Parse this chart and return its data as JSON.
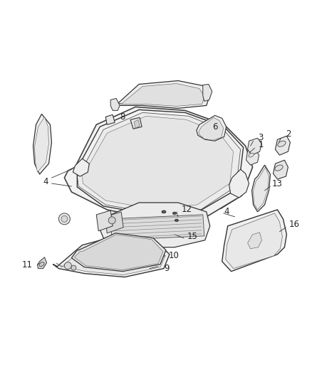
{
  "bg_color": "#ffffff",
  "line_color": "#333333",
  "fill_light": "#f5f5f5",
  "fill_mid": "#e8e8e8",
  "fill_dark": "#d8d8d8",
  "fig_width": 4.38,
  "fig_height": 5.33,
  "dpi": 100
}
